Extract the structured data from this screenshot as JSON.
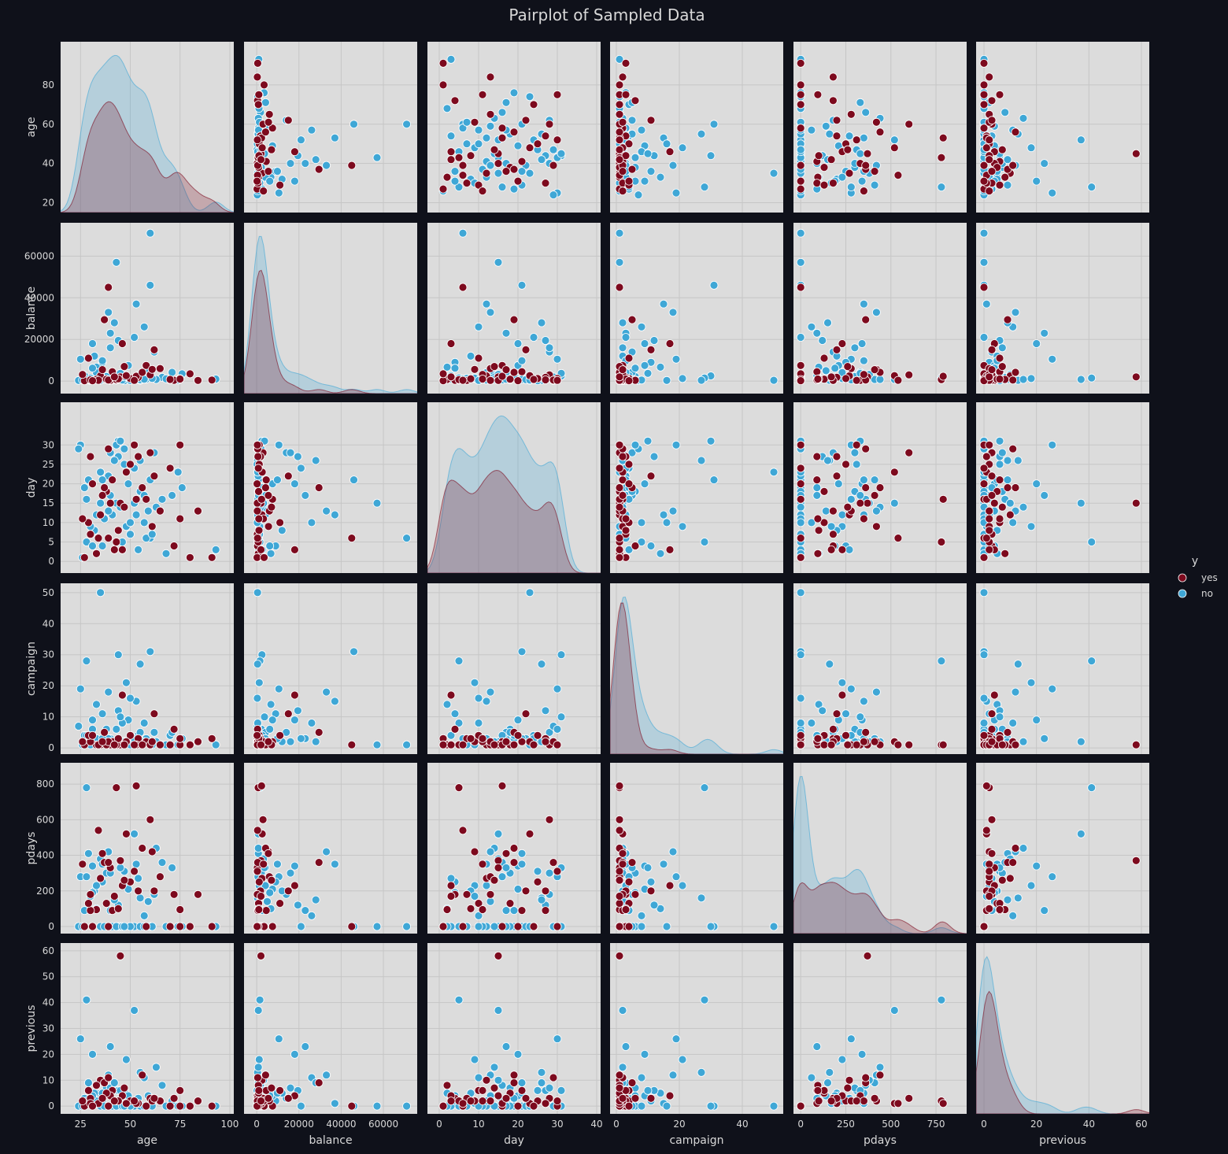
{
  "title": "Pairplot of Sampled Data",
  "hue_label": "y",
  "colors": {
    "figure_bg": "#0f111a",
    "panel_bg": "#dcdcdc",
    "grid": "#c6c6c6",
    "text": "#d8d8d8",
    "yes": "#7d0a1e",
    "no": "#3fa7d6"
  },
  "chart_data": {
    "type": "scatter",
    "subtype": "pairplot",
    "grid": true,
    "legend": {
      "title": "y",
      "placement": "right",
      "entries": [
        "yes",
        "no"
      ]
    },
    "variables": [
      {
        "name": "age",
        "range": [
          15,
          102
        ],
        "ticks": [
          25,
          50,
          75,
          100
        ],
        "ytick_labels": [
          20,
          40,
          60,
          80
        ]
      },
      {
        "name": "balance",
        "range": [
          -6000,
          76000
        ],
        "ticks": [
          0,
          20000,
          40000,
          60000
        ]
      },
      {
        "name": "day",
        "range": [
          -3,
          41
        ],
        "ticks": [
          0,
          10,
          20,
          30,
          40
        ],
        "ytick_labels": [
          0,
          5,
          10,
          15,
          20,
          25,
          30
        ]
      },
      {
        "name": "campaign",
        "range": [
          -2,
          53
        ],
        "ticks": [
          0,
          20,
          40
        ],
        "ytick_labels": [
          0,
          10,
          20,
          30,
          40,
          50
        ]
      },
      {
        "name": "pdays",
        "range": [
          -40,
          920
        ],
        "ticks": [
          0,
          250,
          500,
          750
        ],
        "ytick_labels": [
          0,
          200,
          400,
          600,
          800
        ]
      },
      {
        "name": "previous",
        "range": [
          -3,
          63
        ],
        "ticks": [
          0,
          20,
          40,
          60
        ],
        "ytick_labels": [
          0,
          10,
          20,
          30,
          40,
          50,
          60
        ]
      }
    ],
    "series": [
      {
        "name": "yes",
        "color": "#7d0a1e",
        "points": [
          [
            58,
            7500,
            16,
            2,
            0,
            0
          ],
          [
            91,
            500,
            1,
            3,
            0,
            0
          ],
          [
            75,
            1200,
            30,
            1,
            0,
            0
          ],
          [
            39,
            45000,
            6,
            1,
            0,
            0
          ],
          [
            45,
            2000,
            15,
            1,
            370,
            58
          ],
          [
            60,
            3000,
            28,
            1,
            600,
            3
          ],
          [
            30,
            300,
            7,
            3,
            180,
            3
          ],
          [
            35,
            2500,
            12,
            1,
            270,
            10
          ],
          [
            41,
            4500,
            21,
            2,
            90,
            6
          ],
          [
            50,
            1200,
            25,
            4,
            250,
            2
          ],
          [
            33,
            800,
            2,
            1,
            95,
            8
          ],
          [
            40,
            300,
            15,
            1,
            330,
            4
          ],
          [
            61,
            5600,
            9,
            2,
            420,
            2
          ],
          [
            72,
            400,
            4,
            6,
            180,
            3
          ],
          [
            54,
            1800,
            27,
            3,
            200,
            1
          ],
          [
            27,
            200,
            1,
            1,
            0,
            0
          ],
          [
            38,
            900,
            18,
            1,
            130,
            5
          ],
          [
            48,
            2600,
            23,
            2,
            520,
            1
          ],
          [
            65,
            6000,
            13,
            1,
            280,
            2
          ],
          [
            37,
            29500,
            19,
            5,
            360,
            9
          ],
          [
            46,
            18000,
            3,
            17,
            230,
            4
          ],
          [
            84,
            300,
            13,
            2,
            180,
            2
          ],
          [
            80,
            3500,
            1,
            1,
            0,
            0
          ],
          [
            30,
            600,
            27,
            2,
            90,
            1
          ],
          [
            29,
            11000,
            10,
            4,
            130,
            6
          ],
          [
            43,
            700,
            5,
            1,
            780,
            2
          ],
          [
            53,
            2300,
            16,
            1,
            790,
            1
          ],
          [
            39,
            500,
            29,
            2,
            360,
            11
          ],
          [
            44,
            1100,
            8,
            3,
            100,
            2
          ],
          [
            56,
            4200,
            19,
            1,
            440,
            12
          ],
          [
            70,
            800,
            24,
            1,
            0,
            0
          ],
          [
            26,
            3200,
            11,
            2,
            350,
            2
          ],
          [
            34,
            400,
            6,
            1,
            540,
            1
          ],
          [
            62,
            15000,
            22,
            11,
            200,
            3
          ],
          [
            75,
            1000,
            11,
            3,
            95,
            6
          ],
          [
            52,
            350,
            30,
            1,
            310,
            2
          ],
          [
            47,
            7000,
            14,
            1,
            260,
            7
          ],
          [
            31,
            200,
            20,
            4,
            0,
            0
          ],
          [
            42,
            2000,
            3,
            1,
            170,
            2
          ],
          [
            36,
            5500,
            17,
            2,
            410,
            3
          ]
        ]
      },
      {
        "name": "no",
        "color": "#3fa7d6",
        "points": [
          [
            60,
            71000,
            6,
            1,
            0,
            0
          ],
          [
            43,
            57000,
            15,
            1,
            0,
            0
          ],
          [
            60,
            46000,
            21,
            31,
            0,
            0
          ],
          [
            53,
            37000,
            12,
            15,
            350,
            1
          ],
          [
            93,
            1000,
            3,
            1,
            0,
            0
          ],
          [
            35,
            400,
            23,
            50,
            0,
            0
          ],
          [
            44,
            2500,
            31,
            30,
            0,
            0
          ],
          [
            28,
            1500,
            5,
            28,
            780,
            41
          ],
          [
            52,
            800,
            15,
            2,
            520,
            37
          ],
          [
            31,
            18000,
            20,
            9,
            340,
            20
          ],
          [
            40,
            23000,
            17,
            3,
            90,
            23
          ],
          [
            57,
            26000,
            10,
            8,
            60,
            11
          ],
          [
            25,
            10500,
            30,
            19,
            280,
            26
          ],
          [
            48,
            1200,
            9,
            21,
            230,
            18
          ],
          [
            55,
            400,
            26,
            27,
            160,
            13
          ],
          [
            33,
            6700,
            2,
            14,
            100,
            5
          ],
          [
            45,
            3000,
            14,
            2,
            0,
            0
          ],
          [
            70,
            600,
            24,
            4,
            0,
            0
          ],
          [
            38,
            2200,
            18,
            6,
            300,
            7
          ],
          [
            50,
            1000,
            7,
            1,
            0,
            0
          ],
          [
            29,
            800,
            21,
            3,
            410,
            9
          ],
          [
            62,
            14000,
            28,
            5,
            180,
            3
          ],
          [
            41,
            500,
            12,
            1,
            0,
            0
          ],
          [
            36,
            9000,
            4,
            11,
            250,
            2
          ],
          [
            76,
            3500,
            19,
            3,
            0,
            0
          ],
          [
            47,
            200,
            25,
            2,
            310,
            6
          ],
          [
            59,
            5000,
            13,
            2,
            140,
            4
          ],
          [
            24,
            300,
            29,
            7,
            0,
            0
          ],
          [
            66,
            1800,
            16,
            1,
            360,
            8
          ],
          [
            32,
            12000,
            8,
            2,
            200,
            5
          ],
          [
            39,
            700,
            22,
            3,
            0,
            0
          ],
          [
            54,
            2600,
            3,
            4,
            270,
            3
          ],
          [
            44,
            19500,
            27,
            12,
            120,
            6
          ],
          [
            37,
            1000,
            11,
            2,
            0,
            0
          ],
          [
            71,
            4200,
            17,
            5,
            330,
            2
          ],
          [
            26,
            500,
            1,
            1,
            0,
            0
          ],
          [
            49,
            7500,
            20,
            9,
            210,
            4
          ],
          [
            58,
            900,
            6,
            3,
            0,
            0
          ],
          [
            35,
            3200,
            15,
            2,
            380,
            10
          ],
          [
            43,
            600,
            30,
            6,
            0,
            0
          ],
          [
            30,
            1400,
            9,
            1,
            170,
            1
          ],
          [
            52,
            21000,
            24,
            3,
            0,
            0
          ],
          [
            63,
            800,
            14,
            2,
            440,
            15
          ],
          [
            27,
            2700,
            19,
            4,
            90,
            3
          ],
          [
            46,
            500,
            5,
            8,
            0,
            0
          ],
          [
            40,
            16000,
            28,
            2,
            300,
            7
          ],
          [
            68,
            1100,
            2,
            1,
            0,
            0
          ],
          [
            33,
            4100,
            12,
            3,
            230,
            2
          ],
          [
            55,
            700,
            18,
            5,
            0,
            0
          ],
          [
            42,
            28000,
            26,
            2,
            150,
            9
          ],
          [
            50,
            300,
            10,
            16,
            0,
            0
          ],
          [
            36,
            9800,
            21,
            3,
            350,
            5
          ],
          [
            61,
            1300,
            7,
            1,
            0,
            0
          ],
          [
            28,
            600,
            16,
            4,
            280,
            2
          ],
          [
            47,
            2000,
            29,
            2,
            0,
            0
          ],
          [
            39,
            33000,
            13,
            18,
            420,
            12
          ],
          [
            74,
            500,
            23,
            1,
            0,
            0
          ],
          [
            31,
            6200,
            4,
            6,
            190,
            4
          ],
          [
            57,
            900,
            17,
            2,
            0,
            0
          ],
          [
            45,
            3700,
            31,
            10,
            330,
            6
          ]
        ]
      }
    ],
    "diagonal": "kde"
  }
}
